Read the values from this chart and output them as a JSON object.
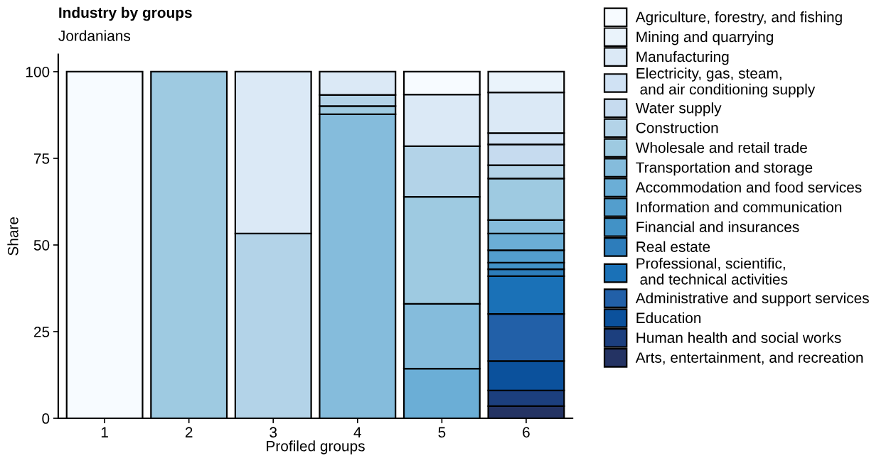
{
  "chart_data": {
    "type": "bar",
    "title": "Industry by groups",
    "subtitle": "Jordanians",
    "xlabel": "Profiled groups",
    "ylabel": "Share",
    "categories": [
      "1",
      "2",
      "3",
      "4",
      "5",
      "6"
    ],
    "stacked": true,
    "ylim": [
      0,
      105
    ],
    "yticks": [
      0,
      25,
      50,
      75,
      100
    ],
    "grid": false,
    "legend": "right",
    "series": [
      {
        "name": "Arts, entertainment, and recreation",
        "color": "#243363",
        "values": [
          null,
          null,
          null,
          null,
          null,
          3.5
        ]
      },
      {
        "name": "Human health and social works",
        "color": "#1c3f7e",
        "values": [
          null,
          null,
          null,
          null,
          null,
          4.5
        ]
      },
      {
        "name": "Education",
        "color": "#0b519c",
        "values": [
          null,
          null,
          null,
          null,
          null,
          8.5
        ]
      },
      {
        "name": "Administrative and support services",
        "color": "#2260a8",
        "values": [
          null,
          null,
          null,
          null,
          null,
          13.6
        ]
      },
      {
        "name": "Professional, scientific,\n and technical activities",
        "color": "#1a71b7",
        "values": [
          null,
          null,
          null,
          null,
          null,
          10.9
        ]
      },
      {
        "name": "Real estate",
        "color": "#2d7dbb",
        "values": [
          null,
          null,
          null,
          null,
          null,
          2.0
        ]
      },
      {
        "name": "Financial and insurances",
        "color": "#4292c6",
        "values": [
          null,
          null,
          null,
          null,
          null,
          1.9
        ]
      },
      {
        "name": "Information and communication",
        "color": "#539ecd",
        "values": [
          null,
          null,
          null,
          null,
          null,
          3.6
        ]
      },
      {
        "name": "Accommodation and food services",
        "color": "#6baed6",
        "values": [
          null,
          null,
          null,
          null,
          14.3,
          4.8
        ]
      },
      {
        "name": "Transportation and storage",
        "color": "#85bcdc",
        "values": [
          null,
          null,
          null,
          87.7,
          18.7,
          3.9
        ]
      },
      {
        "name": "Wholesale and retail trade",
        "color": "#9ecae1",
        "values": [
          null,
          100,
          null,
          2.4,
          30.9,
          12.0
        ]
      },
      {
        "name": "Construction",
        "color": "#b3d3e8",
        "values": [
          null,
          null,
          53.3,
          3.2,
          14.6,
          3.8
        ]
      },
      {
        "name": "Water supply",
        "color": "#c6dbef",
        "values": [
          null,
          null,
          null,
          null,
          null,
          6.0
        ]
      },
      {
        "name": "Electricity, gas, steam,\n and air conditioning supply",
        "color": "#d0e2f4",
        "values": [
          null,
          null,
          null,
          null,
          null,
          3.3
        ]
      },
      {
        "name": "Manufacturing",
        "color": "#dbe9f6",
        "values": [
          null,
          null,
          46.7,
          6.7,
          14.9,
          11.7
        ]
      },
      {
        "name": "Mining and quarrying",
        "color": "#eaf3fb",
        "values": [
          null,
          null,
          null,
          null,
          null,
          6.0
        ]
      },
      {
        "name": "Agriculture, forestry, and fishing",
        "color": "#f7fbff",
        "values": [
          100,
          null,
          null,
          null,
          6.6,
          null
        ]
      }
    ]
  }
}
